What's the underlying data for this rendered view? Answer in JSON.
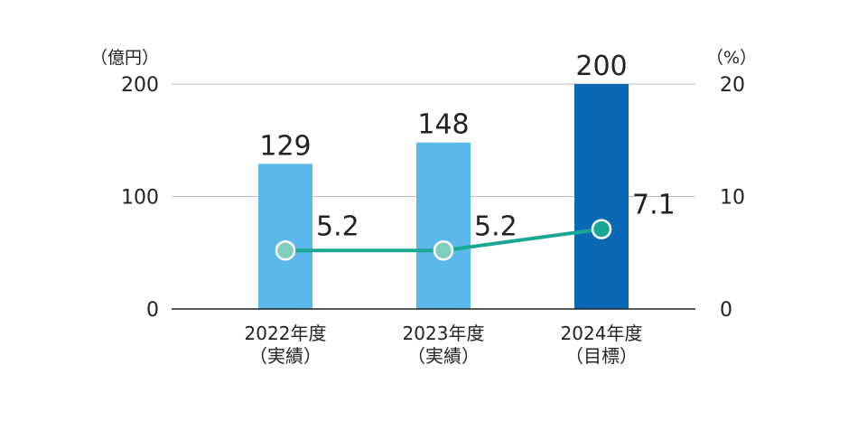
{
  "chart_data": {
    "type": "bar",
    "categories": [
      [
        "2022年度",
        "（実績）"
      ],
      [
        "2023年度",
        "（実績）"
      ],
      [
        "2024年度",
        "（目標）"
      ]
    ],
    "left_axis": {
      "unit": "（億円）",
      "ylim": [
        0,
        200
      ],
      "ticks": [
        "0",
        "100",
        "200"
      ]
    },
    "right_axis": {
      "unit": "（%）",
      "ylim": [
        0,
        20
      ],
      "ticks": [
        "0",
        "10",
        "20"
      ]
    },
    "series": [
      {
        "type": "bar",
        "axis": "left",
        "values": [
          129,
          148,
          200
        ],
        "labels": [
          "129",
          "148",
          "200"
        ],
        "colors": [
          "#5bb8ea",
          "#5bb8ea",
          "#0a68b4"
        ]
      },
      {
        "type": "line",
        "axis": "right",
        "values": [
          5.2,
          5.2,
          7.1
        ],
        "labels": [
          "5.2",
          "5.2",
          "7.1"
        ],
        "line_color": "#1aa894",
        "marker_colors": [
          "#7fcfbf",
          "#7fcfbf",
          "#1aa894"
        ]
      }
    ],
    "grid": true,
    "gridline_color": "#bbbbbb",
    "baseline_color": "#222222"
  }
}
